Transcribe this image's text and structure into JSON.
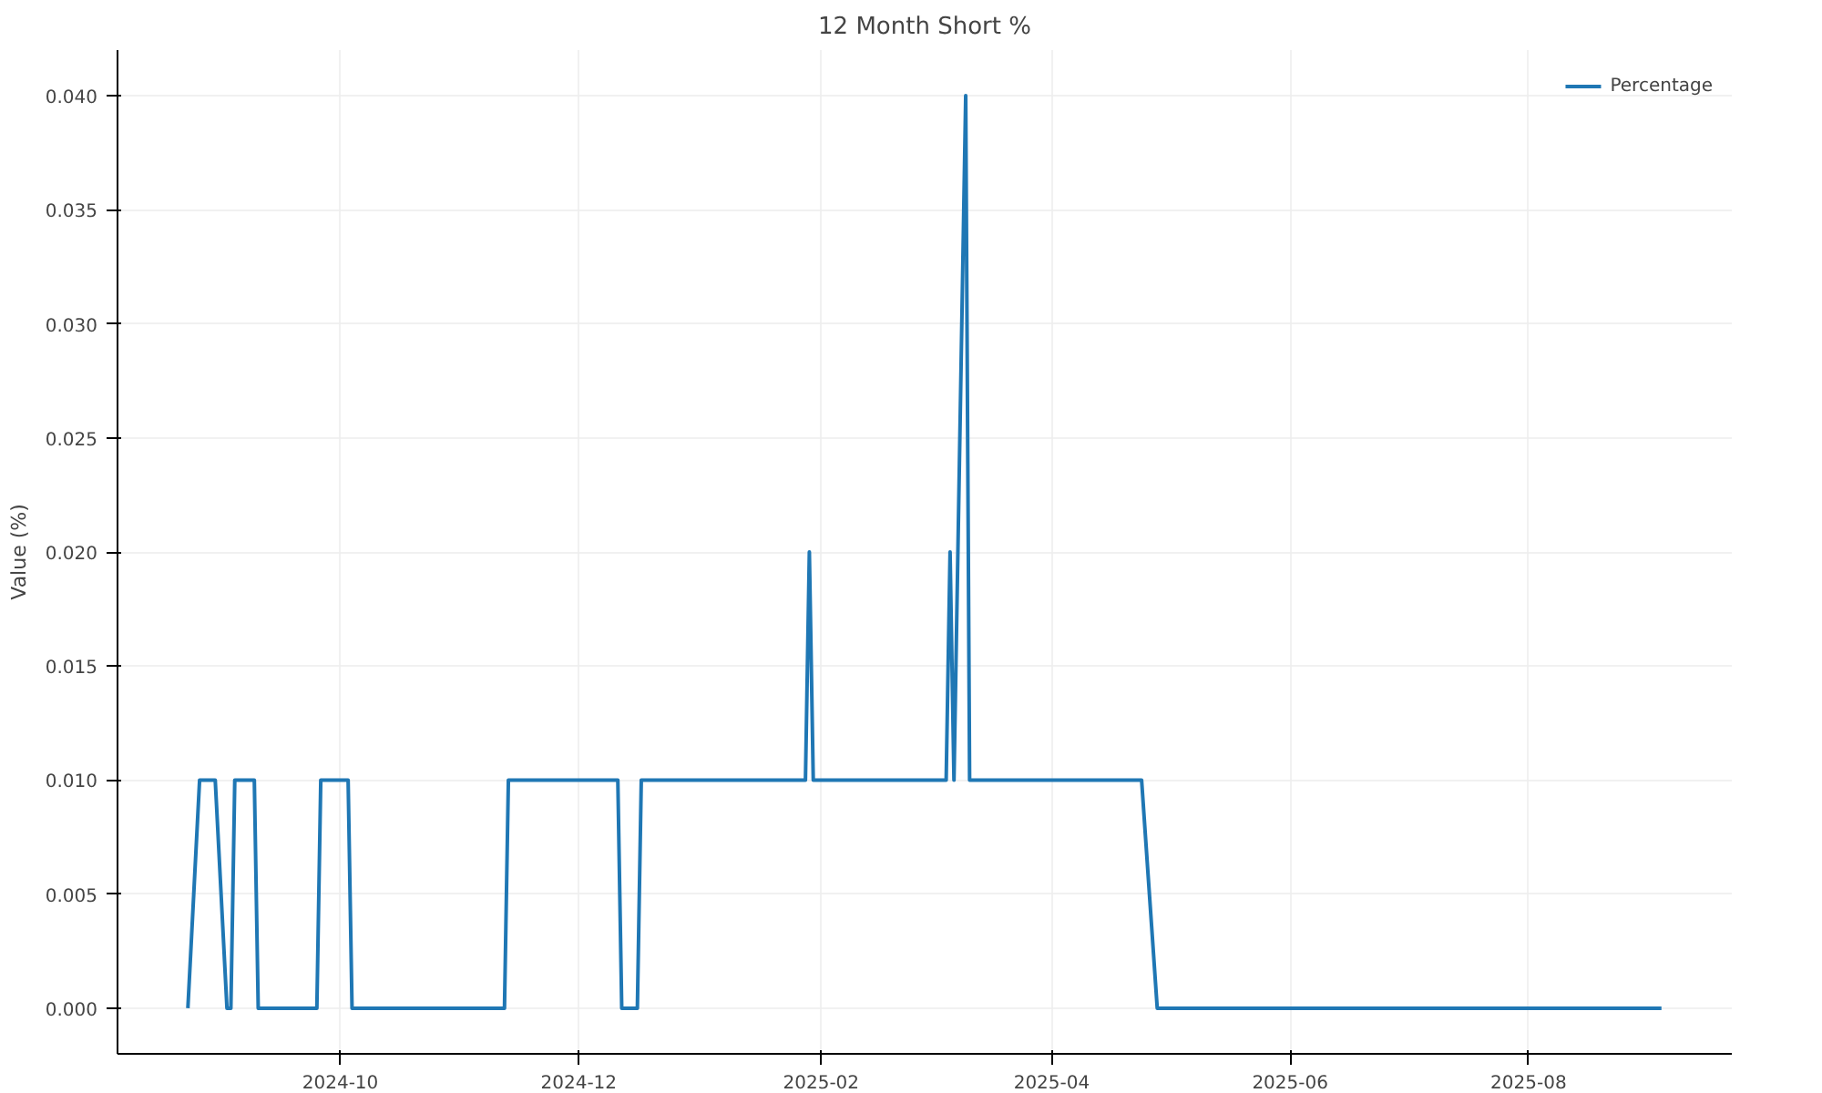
{
  "chart_data": {
    "type": "line",
    "title": "12 Month Short %",
    "ylabel": "Value (%)",
    "x": [
      "2024-08-23",
      "2024-08-26",
      "2024-08-30",
      "2024-09-02",
      "2024-09-03",
      "2024-09-04",
      "2024-09-09",
      "2024-09-10",
      "2024-09-25",
      "2024-09-26",
      "2024-10-03",
      "2024-10-04",
      "2024-11-12",
      "2024-11-13",
      "2024-12-11",
      "2024-12-12",
      "2024-12-16",
      "2024-12-17",
      "2025-01-28",
      "2025-01-29",
      "2025-01-30",
      "2025-03-05",
      "2025-03-06",
      "2025-03-07",
      "2025-03-10",
      "2025-03-11",
      "2025-04-24",
      "2025-04-28",
      "2025-09-04"
    ],
    "series": [
      {
        "name": "Percentage",
        "color": "#1f77b4",
        "values": [
          0,
          0.01,
          0.01,
          0,
          0,
          0.01,
          0.01,
          0,
          0,
          0.01,
          0.01,
          0,
          0,
          0.01,
          0.01,
          0,
          0,
          0.01,
          0.01,
          0.02,
          0.01,
          0.01,
          0.02,
          0.01,
          0.04,
          0.01,
          0.01,
          0,
          0
        ]
      }
    ],
    "xlim": [
      "2024-08-05",
      "2025-09-22"
    ],
    "ylim": [
      -0.002,
      0.042
    ],
    "xticks": [
      {
        "value": "2024-10-01",
        "label": "2024-10"
      },
      {
        "value": "2024-12-01",
        "label": "2024-12"
      },
      {
        "value": "2025-02-01",
        "label": "2025-02"
      },
      {
        "value": "2025-04-01",
        "label": "2025-04"
      },
      {
        "value": "2025-06-01",
        "label": "2025-06"
      },
      {
        "value": "2025-08-01",
        "label": "2025-08"
      }
    ],
    "yticks": [
      {
        "value": 0,
        "label": "0.000"
      },
      {
        "value": 0.005,
        "label": "0.005"
      },
      {
        "value": 0.01,
        "label": "0.010"
      },
      {
        "value": 0.015,
        "label": "0.015"
      },
      {
        "value": 0.02,
        "label": "0.020"
      },
      {
        "value": 0.025,
        "label": "0.025"
      },
      {
        "value": 0.03,
        "label": "0.030"
      },
      {
        "value": 0.035,
        "label": "0.035"
      },
      {
        "value": 0.04,
        "label": "0.040"
      }
    ],
    "grid": true,
    "legend": "top right",
    "line_style": "solid"
  }
}
